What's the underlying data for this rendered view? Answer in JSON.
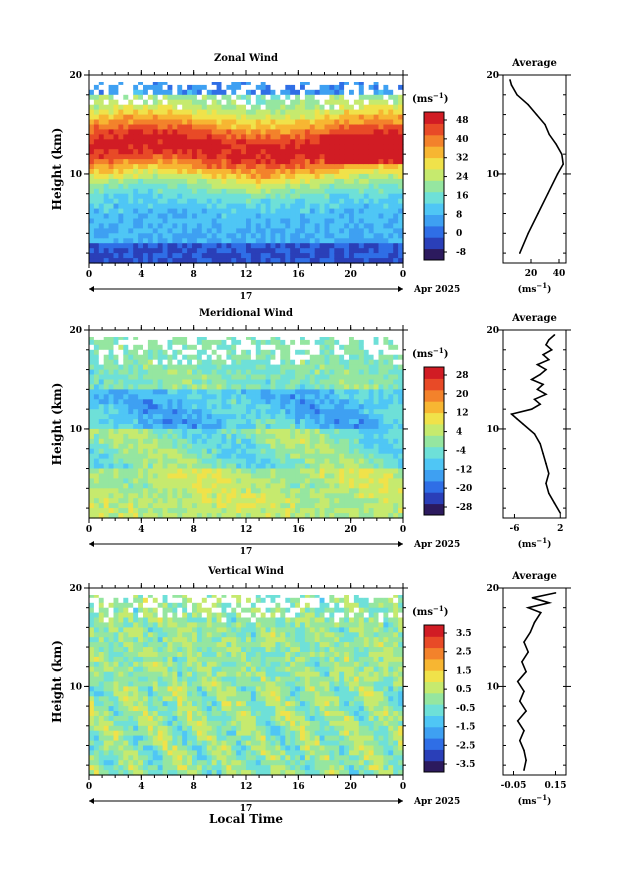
{
  "chart_data": [
    {
      "type": "heatmap",
      "title": "Zonal Wind",
      "ylabel": "Height (km)",
      "xlabel": "",
      "x_ticks": [
        "0",
        "4",
        "8",
        "12",
        "16",
        "20",
        "0"
      ],
      "y_ticks": [
        "20",
        "10"
      ],
      "xlim": [
        0,
        24
      ],
      "ylim": [
        1,
        20
      ],
      "date_label": "17",
      "month_label": "Apr 2025",
      "colorbar": {
        "unit": "(ms",
        "unit_sup": "−1",
        "tick_labels": [
          "48",
          "40",
          "32",
          "24",
          "16",
          "8",
          "0",
          "-8"
        ],
        "range": [
          -8,
          52
        ]
      },
      "average_profile": {
        "title": "Average",
        "x_ticks": [
          "20",
          "40"
        ],
        "xlim": [
          0,
          45
        ],
        "y_ticks": [
          "20",
          "10"
        ],
        "unit": "(ms",
        "unit_sup": "−1",
        "heights": [
          2,
          4,
          6,
          8,
          10,
          11,
          12,
          13,
          14,
          15,
          16,
          17,
          18,
          19,
          19.5
        ],
        "values": [
          12,
          18,
          25,
          32,
          39,
          43,
          42,
          38,
          33,
          30,
          24,
          18,
          10,
          6,
          5
        ]
      }
    },
    {
      "type": "heatmap",
      "title": "Meridional Wind",
      "ylabel": "Height (km)",
      "xlabel": "",
      "x_ticks": [
        "0",
        "4",
        "8",
        "12",
        "16",
        "20",
        "0"
      ],
      "y_ticks": [
        "20",
        "10"
      ],
      "xlim": [
        0,
        24
      ],
      "ylim": [
        1,
        20
      ],
      "date_label": "17",
      "month_label": "Apr 2025",
      "colorbar": {
        "unit": "(ms",
        "unit_sup": "−1",
        "tick_labels": [
          "28",
          "20",
          "12",
          "4",
          "-4",
          "-12",
          "-20",
          "-28"
        ],
        "range": [
          -32,
          32
        ]
      },
      "average_profile": {
        "title": "Average",
        "x_ticks": [
          "-6",
          "2"
        ],
        "xlim": [
          -8,
          3
        ],
        "y_ticks": [
          "20",
          "10"
        ],
        "unit": "(ms",
        "unit_sup": "−1",
        "heights": [
          1.5,
          2.5,
          3.5,
          4.5,
          5.5,
          6.5,
          7.5,
          8.5,
          9.5,
          10.5,
          11,
          11.5,
          12,
          12.5,
          13,
          13.5,
          14,
          14.5,
          15,
          15.5,
          16,
          16.5,
          17,
          17.5,
          18,
          18.5,
          19,
          19.5
        ],
        "values": [
          2,
          1,
          0,
          -0.5,
          0,
          -0.5,
          -1,
          -1.5,
          -2.5,
          -4.5,
          -5.5,
          -6.5,
          -3,
          -1.5,
          -2.5,
          -0.5,
          -2,
          -1,
          -3,
          -1.5,
          -0.5,
          -2,
          0,
          -1,
          0.5,
          -0.5,
          0,
          1
        ]
      }
    },
    {
      "type": "heatmap",
      "title": "Vertical Wind",
      "ylabel": "Height (km)",
      "xlabel": "Local Time",
      "x_ticks": [
        "0",
        "4",
        "8",
        "12",
        "16",
        "20",
        "0"
      ],
      "y_ticks": [
        "20",
        "10"
      ],
      "xlim": [
        0,
        24
      ],
      "ylim": [
        1,
        20
      ],
      "date_label": "17",
      "month_label": "Apr 2025",
      "colorbar": {
        "unit": "(ms",
        "unit_sup": "−1",
        "tick_labels": [
          "3.5",
          "2.5",
          "1.5",
          "0.5",
          "-0.5",
          "-1.5",
          "-2.5",
          "-3.5"
        ],
        "range": [
          -4,
          4
        ]
      },
      "average_profile": {
        "title": "Average",
        "x_ticks": [
          "-0.05",
          "0.15"
        ],
        "xlim": [
          -0.1,
          0.2
        ],
        "y_ticks": [
          "20",
          "10"
        ],
        "unit": "(ms",
        "unit_sup": "−1",
        "heights": [
          1.5,
          2.5,
          3.5,
          4.5,
          5.5,
          6.5,
          7.5,
          8.5,
          9.5,
          10.5,
          11.5,
          12.5,
          13.5,
          14.5,
          15.5,
          16.5,
          17.5,
          18,
          18.5,
          19,
          19.5
        ],
        "values": [
          0.0,
          0.01,
          0.0,
          -0.02,
          0.0,
          -0.03,
          0.01,
          -0.02,
          0.0,
          -0.03,
          0.01,
          -0.01,
          0.02,
          0.0,
          0.03,
          0.05,
          0.08,
          0.02,
          0.12,
          0.04,
          0.15
        ]
      }
    }
  ]
}
